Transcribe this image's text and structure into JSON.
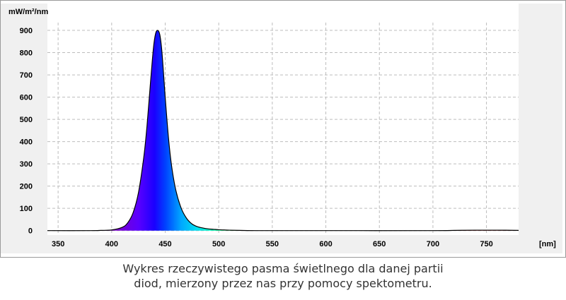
{
  "chart_data": {
    "type": "area",
    "ylabel": "mW/m²/nm",
    "xunit": "[nm]",
    "xlim": [
      340,
      780
    ],
    "ylim": [
      -20,
      935
    ],
    "xticks": [
      350,
      400,
      450,
      500,
      550,
      600,
      650,
      700,
      750
    ],
    "yticks": [
      0,
      100,
      200,
      300,
      400,
      500,
      600,
      700,
      800,
      900
    ],
    "grid": true,
    "fill": "visible-spectrum gradient",
    "series": [
      {
        "x": [
          340,
          380,
          390,
          400,
          410,
          415,
          420,
          425,
          430,
          433,
          436,
          439,
          441,
          443,
          445,
          447,
          450,
          453,
          456,
          460,
          465,
          470,
          475,
          480,
          485,
          490,
          495,
          500,
          505,
          510,
          520,
          540,
          600,
          700,
          720,
          740,
          760,
          780
        ],
        "y": [
          0,
          0,
          1,
          3,
          15,
          35,
          80,
          170,
          330,
          470,
          650,
          820,
          885,
          900,
          880,
          800,
          600,
          420,
          290,
          180,
          100,
          55,
          30,
          18,
          12,
          8,
          6,
          4,
          3,
          2,
          1,
          0,
          0,
          0,
          1,
          2,
          2,
          1
        ]
      }
    ]
  },
  "caption": {
    "line1": "Wykres rzeczywistego pasma świetlnego dla danej partii",
    "line2": "diod, mierzony przez nas przy pomocy spektometru."
  }
}
